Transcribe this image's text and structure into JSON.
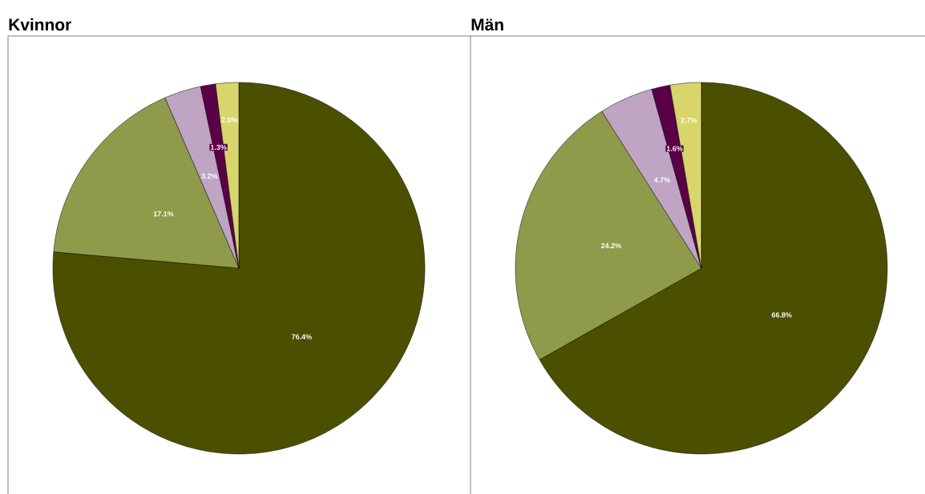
{
  "chart_data": [
    {
      "type": "pie",
      "title": "Kvinnor",
      "categories": [
        null,
        null,
        null,
        null,
        null
      ],
      "values": [
        76.4,
        17.1,
        3.2,
        1.3,
        2.0
      ],
      "colors": [
        "#4a5000",
        "#8f9b4a",
        "#bfa4c4",
        "#5a0046",
        "#d8d66a"
      ],
      "value_labels": [
        "76.4%",
        "17.1%",
        "3.2%",
        "1.3%",
        "2.0%"
      ]
    },
    {
      "type": "pie",
      "title": "Män",
      "categories": [
        null,
        null,
        null,
        null,
        null
      ],
      "values": [
        66.8,
        24.2,
        4.7,
        1.6,
        2.7
      ],
      "colors": [
        "#4a5000",
        "#8f9b4a",
        "#bfa4c4",
        "#5a0046",
        "#d8d66a"
      ],
      "value_labels": [
        "66.8%",
        "24.2%",
        "4.7%",
        "1.6%",
        "2.7%"
      ]
    }
  ]
}
